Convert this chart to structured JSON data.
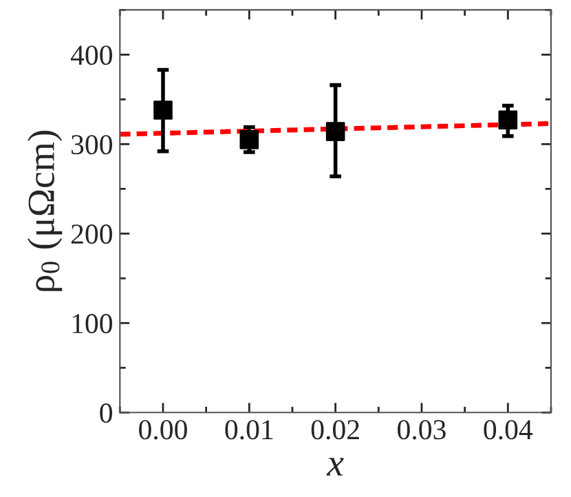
{
  "chart_data": {
    "type": "scatter",
    "xlabel": "x",
    "ylabel": "ρ$_{0}$ (μΩcm)",
    "series": [
      {
        "color": "#000000",
        "marker": "square",
        "x": [
          0.0,
          0.01,
          0.02,
          0.04
        ],
        "values": [
          338,
          305,
          314,
          327
        ],
        "errors": [
          [
            292,
            383
          ],
          [
            291,
            319
          ],
          [
            264,
            366
          ],
          [
            309,
            343
          ]
        ]
      },
      {
        "type": "line",
        "color": "#ff0000",
        "line_style": "dashed",
        "x": [
          -0.005,
          0.045
        ],
        "values": [
          311,
          323
        ]
      }
    ],
    "xlim": [
      -0.005,
      0.045
    ],
    "ylim": [
      0,
      450
    ],
    "xticks": [
      {
        "value": 0.0,
        "label": "0.00"
      },
      {
        "value": 0.01,
        "label": "0.01"
      },
      {
        "value": 0.02,
        "label": "0.02"
      },
      {
        "value": 0.03,
        "label": "0.03"
      },
      {
        "value": 0.04,
        "label": "0.04"
      }
    ],
    "yticks": [
      0,
      100,
      200,
      300,
      400
    ],
    "grid": false,
    "legend": false
  }
}
